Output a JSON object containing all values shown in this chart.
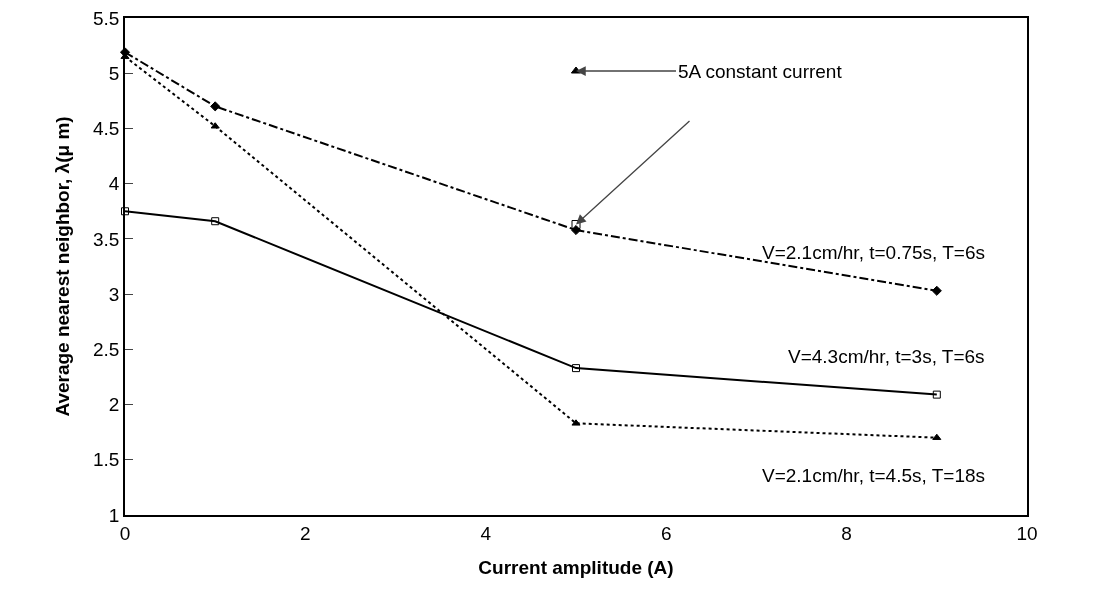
{
  "chart_data": {
    "type": "line",
    "xlabel": "Current amplitude (A)",
    "ylabel": "Average nearest neighbor, λ(μ m)",
    "xlim": [
      0,
      10
    ],
    "xticks": [
      0,
      2,
      4,
      6,
      8,
      10
    ],
    "ylim": [
      1,
      5.5
    ],
    "yticks": [
      1,
      1.5,
      2,
      2.5,
      3,
      3.5,
      4,
      4.5,
      5,
      5.5
    ],
    "grid": false,
    "legend": false,
    "series": [
      {
        "name": "V=2.1cm/hr, t=0.75s, T=6s",
        "color": "#000000",
        "x": [
          0,
          1,
          5,
          9
        ],
        "values": [
          5.19,
          4.7,
          3.58,
          3.03
        ],
        "marker": "diamond",
        "line_style": "dashdot"
      },
      {
        "name": "V=4.3cm/hr, t=3s, T=6s",
        "color": "#000000",
        "x": [
          0,
          1,
          5,
          9
        ],
        "values": [
          3.75,
          3.66,
          2.33,
          2.09
        ],
        "marker": "square",
        "line_style": "solid"
      },
      {
        "name": "V=2.1cm/hr, t=4.5s, T=18s",
        "color": "#000000",
        "x": [
          0,
          1,
          5,
          9
        ],
        "values": [
          5.15,
          4.52,
          1.83,
          1.7
        ],
        "marker": "triangle",
        "line_style": "dotted"
      },
      {
        "type": "scatter",
        "color": "#000000",
        "x": [
          5
        ],
        "values": [
          5.02
        ],
        "marker": "triangle"
      },
      {
        "type": "scatter",
        "color": "#000000",
        "x": [
          5
        ],
        "values": [
          3.63
        ],
        "marker": "square"
      }
    ],
    "annotations": [
      {
        "text": "5A constant current",
        "x": 5,
        "y": 5.02
      }
    ]
  }
}
